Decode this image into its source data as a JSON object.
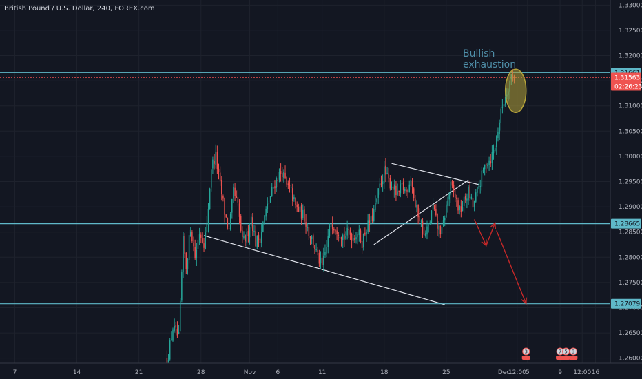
{
  "chart_data": {
    "type": "candlestick",
    "title": "British Pound / U.S. Dollar, 240, FOREX.com",
    "y_axis": {
      "ticks": [
        "1.33000",
        "1.32500",
        "1.32000",
        "1.31500",
        "1.31000",
        "1.30500",
        "1.30000",
        "1.29500",
        "1.29000",
        "1.28500",
        "1.28000",
        "1.27500",
        "1.27000",
        "1.26500",
        "1.26000"
      ],
      "ylim": [
        1.259,
        1.331
      ]
    },
    "x_axis": {
      "ticks": [
        {
          "label": "7",
          "bar": -128
        },
        {
          "label": "14",
          "bar": -86
        },
        {
          "label": "21",
          "bar": -44
        },
        {
          "label": "28",
          "bar": -2
        },
        {
          "label": "Nov",
          "bar": 31
        },
        {
          "label": "6",
          "bar": 50
        },
        {
          "label": "11",
          "bar": 80
        },
        {
          "label": "18",
          "bar": 122
        },
        {
          "label": "25",
          "bar": 164
        },
        {
          "label": "Dec",
          "bar": 203
        },
        {
          "label": "12:00",
          "bar": 212
        },
        {
          "label": "5",
          "bar": 219
        },
        {
          "label": "9",
          "bar": 241
        },
        {
          "label": "12:00",
          "bar": 256
        },
        {
          "label": "16",
          "bar": 265
        }
      ],
      "bar_range": [
        -138,
        275
      ]
    },
    "price_lines": [
      {
        "value": 1.31661,
        "label": "1.31661",
        "color": "#5fb8c8"
      },
      {
        "value": 1.28665,
        "label": "1.28665",
        "color": "#5fb8c8"
      },
      {
        "value": 1.27079,
        "label": "1.27079",
        "color": "#5fb8c8"
      }
    ],
    "current_price": {
      "value": 1.31563,
      "label": "1.31563",
      "countdown": "02:26:23",
      "color": "#ef5350"
    },
    "annotation": {
      "lines": [
        "Bullish",
        "exhaustion"
      ],
      "color": "#4f8ea8"
    },
    "trendlines": [
      {
        "x1": 0,
        "y1": 1.2843,
        "x2": 163,
        "y2": 1.2706
      },
      {
        "x1": 127,
        "y1": 1.2986,
        "x2": 186,
        "y2": 1.2944
      },
      {
        "x1": 115,
        "y1": 1.2825,
        "x2": 179,
        "y2": 1.2953
      }
    ],
    "projection_arrows": [
      {
        "x1": 183,
        "y1": 1.2875,
        "x2": 191,
        "y2": 1.2823
      },
      {
        "x1": 191,
        "y1": 1.2823,
        "x2": 197,
        "y2": 1.2868
      },
      {
        "x1": 198,
        "y1": 1.2853,
        "x2": 218,
        "y2": 1.2708
      }
    ],
    "highlight_ellipse": {
      "cx": 211,
      "cy": 1.313,
      "rx": 7,
      "ry": 0.0043,
      "color": "#b5a33a"
    },
    "events": [
      {
        "bar": 218,
        "label": "3"
      },
      {
        "bar": 241,
        "label": "7"
      },
      {
        "bar": 245,
        "label": "5"
      },
      {
        "bar": 250,
        "label": "3"
      }
    ],
    "bullish_color": "#26a69a",
    "bearish_color": "#ef5350",
    "keypoints": [
      [
        -25,
        1.259
      ],
      [
        -21,
        1.266
      ],
      [
        -17,
        1.264
      ],
      [
        -14,
        1.283
      ],
      [
        -12,
        1.278
      ],
      [
        -9,
        1.286
      ],
      [
        -6,
        1.28
      ],
      [
        -3,
        1.285
      ],
      [
        0,
        1.283
      ],
      [
        2,
        1.286
      ],
      [
        5,
        1.298
      ],
      [
        8,
        1.3
      ],
      [
        10,
        1.296
      ],
      [
        14,
        1.289
      ],
      [
        17,
        1.285
      ],
      [
        20,
        1.293
      ],
      [
        23,
        1.29
      ],
      [
        26,
        1.283
      ],
      [
        29,
        1.284
      ],
      [
        32,
        1.288
      ],
      [
        35,
        1.283
      ],
      [
        38,
        1.284
      ],
      [
        41,
        1.288
      ],
      [
        44,
        1.291
      ],
      [
        47,
        1.294
      ],
      [
        50,
        1.296
      ],
      [
        53,
        1.297
      ],
      [
        56,
        1.294
      ],
      [
        59,
        1.293
      ],
      [
        62,
        1.29
      ],
      [
        65,
        1.289
      ],
      [
        68,
        1.288
      ],
      [
        71,
        1.285
      ],
      [
        74,
        1.283
      ],
      [
        77,
        1.28
      ],
      [
        80,
        1.278
      ],
      [
        83,
        1.282
      ],
      [
        86,
        1.287
      ],
      [
        89,
        1.286
      ],
      [
        92,
        1.285
      ],
      [
        95,
        1.284
      ],
      [
        98,
        1.285
      ],
      [
        101,
        1.284
      ],
      [
        104,
        1.285
      ],
      [
        107,
        1.283
      ],
      [
        110,
        1.286
      ],
      [
        113,
        1.287
      ],
      [
        116,
        1.29
      ],
      [
        119,
        1.294
      ],
      [
        122,
        1.297
      ],
      [
        125,
        1.295
      ],
      [
        128,
        1.294
      ],
      [
        131,
        1.292
      ],
      [
        134,
        1.294
      ],
      [
        137,
        1.293
      ],
      [
        140,
        1.296
      ],
      [
        143,
        1.29
      ],
      [
        146,
        1.288
      ],
      [
        149,
        1.284
      ],
      [
        152,
        1.286
      ],
      [
        155,
        1.29
      ],
      [
        158,
        1.286
      ],
      [
        161,
        1.285
      ],
      [
        164,
        1.29
      ],
      [
        167,
        1.294
      ],
      [
        170,
        1.292
      ],
      [
        173,
        1.289
      ],
      [
        176,
        1.291
      ],
      [
        179,
        1.293
      ],
      [
        182,
        1.29
      ],
      [
        185,
        1.293
      ],
      [
        188,
        1.296
      ],
      [
        191,
        1.299
      ],
      [
        194,
        1.2995
      ],
      [
        197,
        1.302
      ],
      [
        200,
        1.307
      ],
      [
        202,
        1.31
      ],
      [
        204,
        1.312
      ],
      [
        206,
        1.314
      ],
      [
        208,
        1.316
      ],
      [
        210,
        1.3157
      ]
    ]
  }
}
